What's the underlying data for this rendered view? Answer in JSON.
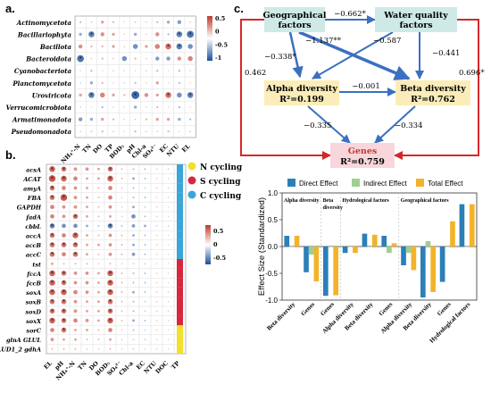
{
  "panel_a": {
    "label": "a.",
    "rows": [
      "Actinomycetota",
      "Bacillariophyta",
      "Bacillota",
      "Bacteroidota",
      "Cyanobacteriota",
      "Planctomycetota",
      "Uroviricota",
      "Verrucomicrobiota",
      "Armatimonadota",
      "Pseudomonadota"
    ],
    "cols": [
      "NH₄⁺-N",
      "TN",
      "DO",
      "TP",
      "BOD₅",
      "pH",
      "Chl-a",
      "SO₄²⁻",
      "EC",
      "NTU",
      "EL"
    ],
    "colorbar_ticks": [
      "0.5",
      "0",
      "-0.5",
      "-1"
    ],
    "matrix": [
      [
        0.2,
        -0.1,
        0.3,
        0.2,
        0,
        -0.1,
        0.1,
        0.2,
        -0.3,
        -0.4,
        0.1
      ],
      [
        -0.3,
        -0.6,
        0.4,
        0.3,
        0.1,
        -0.3,
        0.1,
        0.4,
        -0.2,
        -0.6,
        -0.7
      ],
      [
        0.4,
        0.2,
        0.2,
        0.3,
        0.1,
        -0.5,
        0.3,
        0.5,
        0.6,
        -0.6,
        -0.5
      ],
      [
        -0.7,
        0.1,
        0.2,
        0.1,
        -0.5,
        0.2,
        0.1,
        -0.4,
        -0.4,
        0.4,
        0.5
      ],
      [
        0,
        -0.2,
        0,
        0.1,
        0,
        0,
        0.1,
        -0.2,
        0,
        -0.2,
        0
      ],
      [
        -0.1,
        -0.3,
        0.2,
        0,
        -0.1,
        -0.2,
        0,
        0.3,
        0,
        -0.2,
        0
      ],
      [
        0.3,
        -0.6,
        0.5,
        0.3,
        0.2,
        -0.8,
        0.4,
        0.3,
        0.6,
        -0.5,
        -0.6
      ],
      [
        -0.1,
        0,
        -0.2,
        0.1,
        0,
        -0.3,
        0.1,
        0.2,
        0.1,
        -0.2,
        0.1
      ],
      [
        -0.4,
        -0.3,
        0.3,
        0.2,
        0,
        -0.1,
        0.2,
        0.3,
        0.3,
        -0.3,
        -0.2
      ],
      [
        0.1,
        -0.1,
        0.2,
        0.1,
        0,
        -0.2,
        0.1,
        0.1,
        0.2,
        0,
        0.1
      ]
    ]
  },
  "panel_b": {
    "label": "b.",
    "rows": [
      "acsA",
      "ACAT",
      "amyA",
      "FBA",
      "GAPDH",
      "fadA",
      "cbbL",
      "accA",
      "accB",
      "accC",
      "tst",
      "fccA",
      "fccB",
      "soxA",
      "soxB",
      "soxD",
      "soxX",
      "sorC",
      "glnA GLUL",
      "GLUD1_2 gdhA"
    ],
    "cols": [
      "EL",
      "pH",
      "NH₄⁺-N",
      "TN",
      "DO",
      "BOD₅",
      "SO₄²⁻",
      "Chl-a",
      "EC",
      "NTU",
      "DOC",
      "TP"
    ],
    "colorbar_ticks": [
      "0.5",
      "0",
      "-0.5"
    ],
    "legend": [
      {
        "label": "N cycling",
        "color": "#f2e02a"
      },
      {
        "label": "S cycling",
        "color": "#d7263d"
      },
      {
        "label": "C cycling",
        "color": "#3aa6d8"
      }
    ],
    "side_bar": [
      "C",
      "C",
      "C",
      "C",
      "C",
      "C",
      "C",
      "C",
      "C",
      "C",
      "S",
      "S",
      "S",
      "S",
      "S",
      "S",
      "S",
      "N",
      "N",
      "N"
    ],
    "matrix": [
      [
        0.7,
        0.6,
        0.4,
        0.4,
        0.3,
        0.6,
        0.2,
        -0.2,
        -0.2,
        0.1,
        0.1,
        0.1
      ],
      [
        0.8,
        0.7,
        0.5,
        0.3,
        0.3,
        0.7,
        0.2,
        -0.3,
        -0.2,
        0.1,
        0.1,
        0.1
      ],
      [
        0.6,
        0.5,
        0.4,
        0.3,
        0.2,
        0.5,
        0.1,
        -0.2,
        -0.1,
        0.1,
        0.1,
        0
      ],
      [
        0.6,
        0.8,
        0.4,
        0.3,
        0.2,
        0.5,
        0.1,
        -0.2,
        -0.2,
        0,
        0.1,
        0.1
      ],
      [
        0.5,
        0.4,
        0.4,
        0.3,
        0.2,
        0.4,
        0.1,
        -0.3,
        -0.1,
        0.1,
        0,
        0.1
      ],
      [
        0.5,
        0.4,
        0.6,
        0.3,
        0.2,
        0.3,
        0.1,
        -0.5,
        -0.2,
        0.1,
        0.1,
        0
      ],
      [
        -0.6,
        -0.5,
        -0.5,
        -0.3,
        -0.2,
        -0.6,
        -0.2,
        -0.4,
        -0.3,
        -0.1,
        -0.1,
        0
      ],
      [
        0.6,
        0.5,
        0.7,
        0.3,
        0.2,
        0.4,
        0.2,
        -0.3,
        -0.2,
        0.1,
        0.1,
        0.1
      ],
      [
        0.6,
        0.6,
        0.6,
        0.3,
        0.3,
        0.4,
        0.2,
        -0.3,
        -0.2,
        0.1,
        0,
        0.1
      ],
      [
        0.6,
        0.5,
        0.6,
        0.3,
        0.2,
        0.4,
        0.2,
        -0.4,
        -0.2,
        0.1,
        0.1,
        0
      ],
      [
        0.3,
        0.2,
        0.2,
        0.2,
        0.1,
        0.2,
        0.1,
        -0.1,
        -0.1,
        0,
        0,
        0
      ],
      [
        0.7,
        0.6,
        0.4,
        0.4,
        0.3,
        0.7,
        0.2,
        -0.2,
        -0.2,
        0.1,
        0.1,
        0.1
      ],
      [
        0.7,
        0.6,
        0.4,
        0.4,
        0.3,
        0.7,
        0.2,
        -0.2,
        -0.2,
        0.1,
        0.1,
        0.1
      ],
      [
        0.7,
        0.7,
        0.5,
        0.4,
        0.3,
        0.7,
        0.2,
        -0.3,
        -0.2,
        0.1,
        0.1,
        0.1
      ],
      [
        0.6,
        0.6,
        0.4,
        0.3,
        0.3,
        0.6,
        0.2,
        -0.2,
        -0.1,
        0.1,
        0.1,
        0.1
      ],
      [
        0.6,
        0.6,
        0.4,
        0.3,
        0.3,
        0.6,
        0.2,
        -0.2,
        -0.1,
        0.1,
        0.1,
        0
      ],
      [
        0.7,
        0.6,
        0.5,
        0.4,
        0.3,
        0.7,
        0.2,
        -0.3,
        -0.2,
        0.1,
        0.1,
        0.1
      ],
      [
        0.5,
        0.6,
        0.3,
        0.3,
        0.2,
        0.5,
        0.1,
        -0.2,
        -0.1,
        0.1,
        0,
        0.1
      ],
      [
        0.4,
        0.3,
        0.3,
        0.2,
        0.2,
        0.3,
        0.1,
        -0.1,
        -0.1,
        0,
        0,
        0
      ],
      [
        0.2,
        0.2,
        0.2,
        0.1,
        0.1,
        0.2,
        0.1,
        -0.1,
        0,
        0,
        0,
        0
      ]
    ]
  },
  "panel_c": {
    "label": "c.",
    "nodes": {
      "geo": "Geographical factors",
      "water": "Water quality factors",
      "alpha": "Alpha diversity",
      "alpha_r2": "R²=0.199",
      "beta": "Beta diversity",
      "beta_r2": "R²=0.762",
      "genes": "Genes",
      "genes_r2": "R²=0.759"
    },
    "paths": {
      "geo_water": "−0.662*",
      "geo_alpha": "−0.338*",
      "geo_beta": "−1.137**",
      "water_alpha": "−0.587",
      "water_beta": "−0.441",
      "alpha_beta": "−0.001",
      "alpha_genes": "−0.335",
      "beta_genes": "−0.334",
      "geo_genes": "0.462",
      "water_genes": "0.696*"
    }
  },
  "chart_data": {
    "type": "bar",
    "ylabel": "Effect Size (Standardized)",
    "ylim": [
      -1.0,
      1.0
    ],
    "yticks": [
      "1.0",
      "0.5",
      "0.0",
      "-0.5",
      "-1.0"
    ],
    "legend": [
      "Direct Effect",
      "Indirect Effect",
      "Total Effect"
    ],
    "colors": {
      "direct": "#2c7fb8",
      "indirect": "#9fcf8f",
      "total": "#f3b329"
    },
    "groups": [
      {
        "title": "Alpha diversity",
        "categories": [
          "Beta diversity",
          "Genes"
        ]
      },
      {
        "title": "Beta diversity",
        "categories": [
          "Genes"
        ]
      },
      {
        "title": "Hydrological factors",
        "categories": [
          "Alpha diversity",
          "Beta diversity",
          "Genes"
        ]
      },
      {
        "title": "Geographical factors",
        "categories": [
          "Alpha diversity",
          "Beta diversity",
          "Genes",
          "Hydrological factors"
        ]
      }
    ],
    "categories": [
      "Beta diversity",
      "Genes",
      "Genes",
      "Alpha diversity",
      "Beta diversity",
      "Genes",
      "Alpha diversity",
      "Beta diversity",
      "Genes",
      "Hydrological factors"
    ],
    "series": [
      {
        "name": "Direct Effect",
        "values": [
          0.2,
          -0.48,
          -0.92,
          -0.12,
          0.24,
          0.2,
          -0.35,
          -0.95,
          -0.66,
          0.79
        ]
      },
      {
        "name": "Indirect Effect",
        "values": [
          0.0,
          -0.15,
          0.0,
          0.0,
          0.0,
          -0.12,
          -0.12,
          0.1,
          0.0,
          0.0
        ]
      },
      {
        "name": "Total Effect",
        "values": [
          0.2,
          -0.65,
          -0.91,
          -0.12,
          0.22,
          0.06,
          -0.44,
          -0.85,
          0.47,
          0.79
        ]
      }
    ]
  }
}
